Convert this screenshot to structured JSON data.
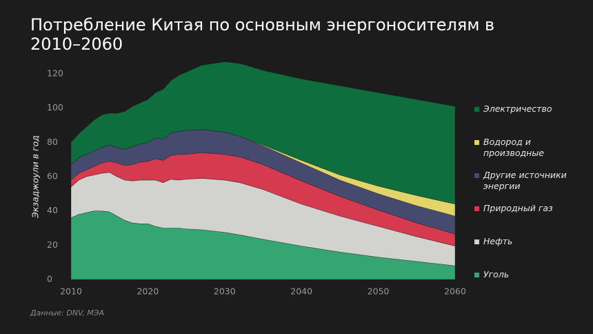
{
  "chart_data": {
    "type": "area",
    "stacked": true,
    "title": "Потребление Китая по основным энергоносителям в 2010–2060",
    "y_label": "Экзаджоули в год",
    "source": "Данные: DNV, МЭА",
    "x": [
      2010,
      2011,
      2012,
      2013,
      2014,
      2015,
      2016,
      2017,
      2018,
      2019,
      2020,
      2021,
      2022,
      2023,
      2024,
      2025,
      2027,
      2030,
      2032,
      2035,
      2040,
      2045,
      2050,
      2055,
      2060
    ],
    "xlim": [
      2010,
      2060
    ],
    "xticks": [
      2010,
      2020,
      2030,
      2040,
      2050,
      2060
    ],
    "ylim": [
      0,
      120
    ],
    "yticks": [
      0,
      20,
      40,
      60,
      80,
      100,
      120
    ],
    "grid": false,
    "series": [
      {
        "name": "Уголь",
        "color": "#35a672",
        "values": [
          36,
          38,
          39,
          40,
          40,
          39.5,
          37,
          34.5,
          33,
          32.5,
          32.5,
          31,
          30,
          30,
          30,
          29.5,
          29,
          27.5,
          26,
          23.5,
          19.5,
          16,
          13,
          10.5,
          8
        ]
      },
      {
        "name": "Нефть",
        "color": "#d2d2ce",
        "values": [
          18,
          20,
          21,
          21,
          22,
          23,
          23,
          23.5,
          24.5,
          25.5,
          25.5,
          27,
          26.5,
          28.5,
          28,
          29,
          30,
          30.5,
          30.5,
          29,
          24.5,
          21,
          18,
          14.5,
          11.5
        ]
      },
      {
        "name": "Природный газ",
        "color": "#d63a4f",
        "values": [
          4,
          4,
          4,
          5,
          6,
          6.5,
          8,
          8.5,
          9.5,
          10.5,
          11,
          12.5,
          13,
          14,
          15,
          14.5,
          15,
          15,
          15,
          14.5,
          13.5,
          11.5,
          9.5,
          8,
          7
        ]
      },
      {
        "name": "Другие источники энергии",
        "color": "#454a6e",
        "values": [
          9,
          9,
          9,
          9,
          9,
          9.5,
          9,
          9.5,
          10.5,
          10.5,
          11,
          12,
          12.5,
          13,
          13.5,
          14,
          13.5,
          13,
          12,
          11,
          10.5,
          9.5,
          9.5,
          10,
          10.5
        ]
      },
      {
        "name": "Водород и производные",
        "color": "#e2d468",
        "values": [
          0,
          0,
          0,
          0,
          0,
          0,
          0,
          0,
          0,
          0,
          0,
          0,
          0,
          0,
          0,
          0,
          0,
          0,
          0,
          0.5,
          1.5,
          3,
          4.5,
          6,
          7
        ]
      },
      {
        "name": "Электричество",
        "color": "#0f6e3e",
        "values": [
          13,
          14,
          16,
          18,
          19,
          18.5,
          20,
          22,
          23.5,
          24,
          25,
          26.5,
          29,
          30.5,
          32.5,
          34,
          37.5,
          41,
          42.5,
          43.5,
          47.5,
          52,
          54.5,
          56,
          57
        ]
      }
    ]
  }
}
